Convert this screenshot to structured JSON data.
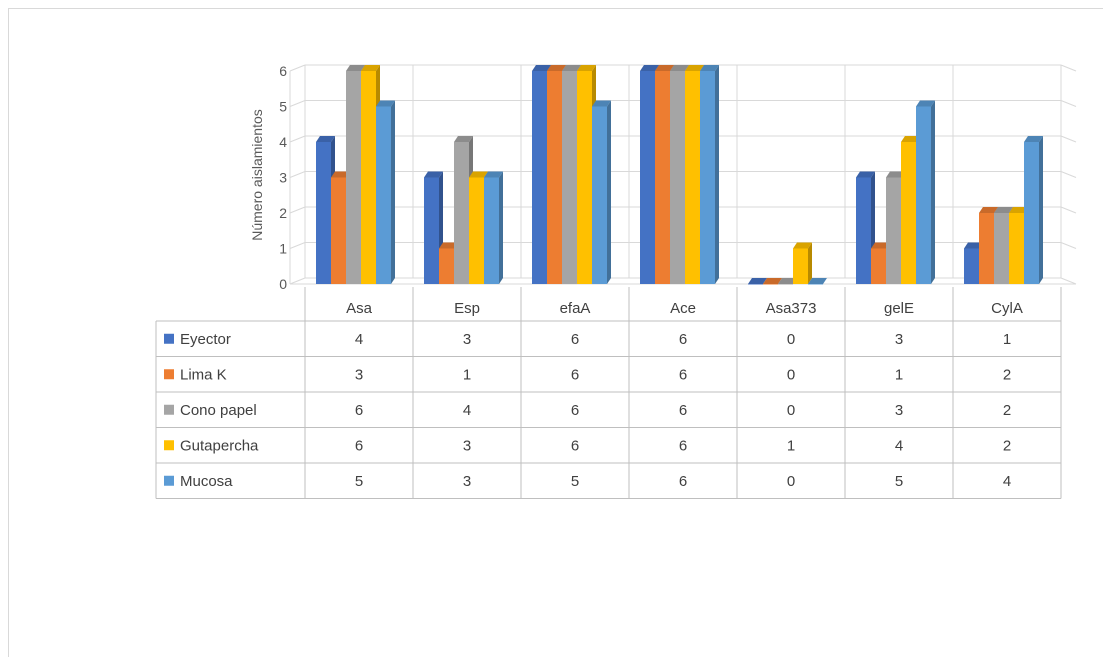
{
  "chart_data": {
    "type": "bar",
    "title": "",
    "ylabel": "Número aislamientos",
    "xlabel": "",
    "ylim": [
      0,
      6
    ],
    "yticks": [
      0,
      1,
      2,
      3,
      4,
      5,
      6
    ],
    "categories": [
      "Asa",
      "Esp",
      "efaA",
      "Ace",
      "Asa373",
      "gelE",
      "CylA"
    ],
    "series": [
      {
        "name": "Eyector",
        "color": "#4472c4",
        "values": [
          4,
          3,
          6,
          6,
          0,
          3,
          1
        ]
      },
      {
        "name": "Lima K",
        "color": "#ed7d31",
        "values": [
          3,
          1,
          6,
          6,
          0,
          1,
          2
        ]
      },
      {
        "name": "Cono papel",
        "color": "#a5a5a5",
        "values": [
          6,
          4,
          6,
          6,
          0,
          3,
          2
        ]
      },
      {
        "name": "Gutapercha",
        "color": "#ffc000",
        "values": [
          6,
          3,
          6,
          6,
          1,
          4,
          2
        ]
      },
      {
        "name": "Mucosa",
        "color": "#5b9bd5",
        "values": [
          5,
          3,
          5,
          6,
          0,
          5,
          4
        ]
      }
    ],
    "grid": true,
    "style": "3d-clustered-column",
    "legend": "data-table"
  }
}
